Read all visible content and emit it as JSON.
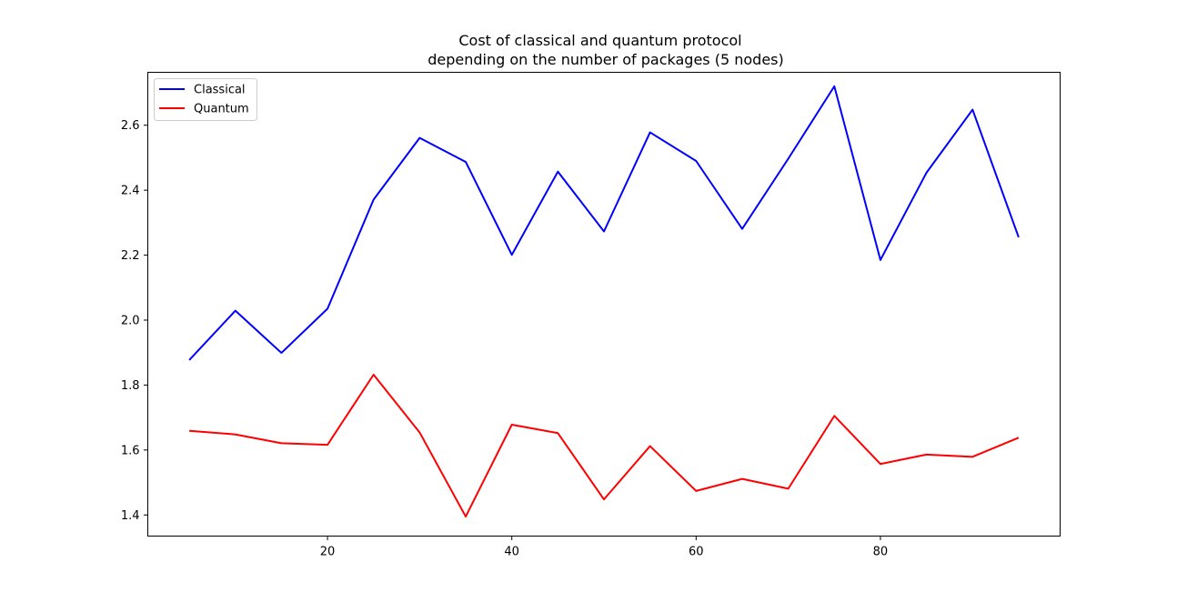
{
  "chart_data": {
    "type": "line",
    "title_lines": [
      "Cost of classical and quantum protocol",
      "depending on the number of packages (5 nodes)"
    ],
    "xlabel": "",
    "ylabel": "",
    "x": [
      5,
      10,
      15,
      20,
      25,
      30,
      35,
      40,
      45,
      50,
      55,
      60,
      65,
      70,
      75,
      80,
      85,
      90,
      95
    ],
    "xlim": [
      0.5,
      99.5
    ],
    "ylim": [
      1.335,
      2.763
    ],
    "xticks": [
      20,
      40,
      60,
      80
    ],
    "yticks": [
      1.4,
      1.6,
      1.8,
      2.0,
      2.2,
      2.4,
      2.6
    ],
    "xtick_labels": [
      "20",
      "40",
      "60",
      "80"
    ],
    "ytick_labels": [
      "1.4",
      "1.6",
      "1.8",
      "2.0",
      "2.2",
      "2.4",
      "2.6"
    ],
    "grid": false,
    "legend_position": "top-left",
    "series": [
      {
        "name": "Classical",
        "color": "#0000ff",
        "values": [
          1.877,
          2.029,
          1.899,
          2.035,
          2.371,
          2.561,
          2.487,
          2.201,
          2.457,
          2.273,
          2.578,
          2.49,
          2.281,
          2.497,
          2.72,
          2.185,
          2.454,
          2.648,
          2.255
        ]
      },
      {
        "name": "Quantum",
        "color": "#ff0000",
        "values": [
          1.659,
          1.648,
          1.621,
          1.616,
          1.832,
          1.654,
          1.395,
          1.678,
          1.652,
          1.448,
          1.612,
          1.474,
          1.511,
          1.481,
          1.705,
          1.557,
          1.586,
          1.579,
          1.638
        ]
      }
    ]
  }
}
